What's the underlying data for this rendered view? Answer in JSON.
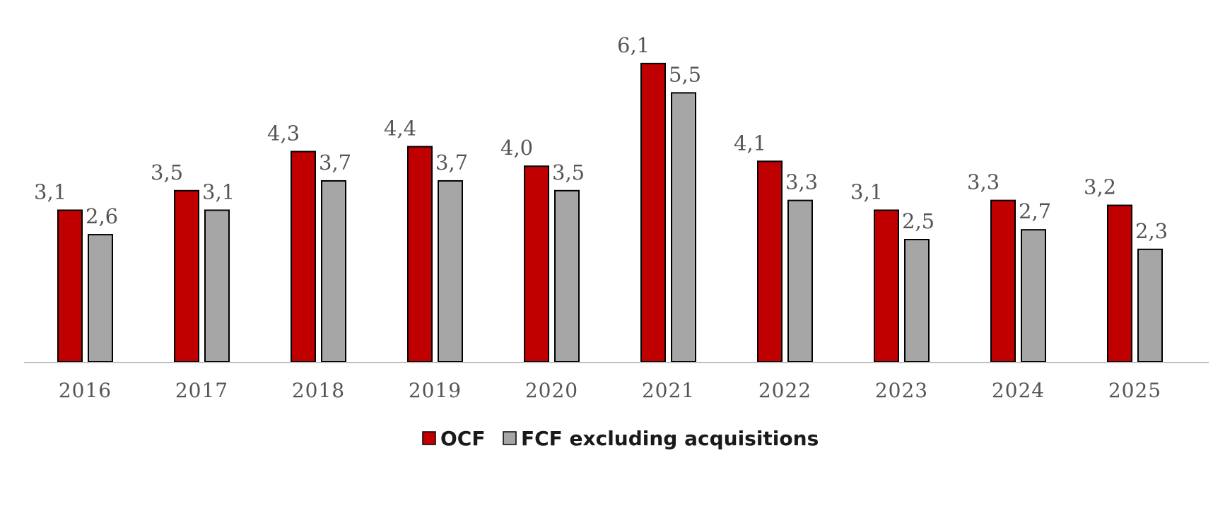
{
  "chart_data": {
    "type": "bar",
    "categories": [
      "2016",
      "2017",
      "2018",
      "2019",
      "2020",
      "2021",
      "2022",
      "2023",
      "2024",
      "2025"
    ],
    "series": [
      {
        "name": "OCF",
        "color": "#c00000",
        "values": [
          3.1,
          3.5,
          4.3,
          4.4,
          4.0,
          6.1,
          4.1,
          3.1,
          3.3,
          3.2
        ]
      },
      {
        "name": "FCF excluding acquisitions",
        "color": "#a6a6a6",
        "values": [
          2.6,
          3.1,
          3.7,
          3.7,
          3.5,
          5.5,
          3.3,
          2.5,
          2.7,
          2.3
        ]
      }
    ],
    "value_labels": {
      "OCF": [
        "3,1",
        "3,5",
        "4,3",
        "4,4",
        "4,0",
        "6,1",
        "4,1",
        "3,1",
        "3,3",
        "3,2"
      ],
      "FCF excluding acquisitions": [
        "2,6",
        "3,1",
        "3,7",
        "3,7",
        "3,5",
        "5,5",
        "3,3",
        "2,5",
        "2,7",
        "2,3"
      ]
    },
    "ylim": [
      0,
      6.5
    ],
    "grid": false,
    "legend_position": "bottom-center",
    "bar_outline": "#000000",
    "axis_color": "#bfbfbf"
  }
}
